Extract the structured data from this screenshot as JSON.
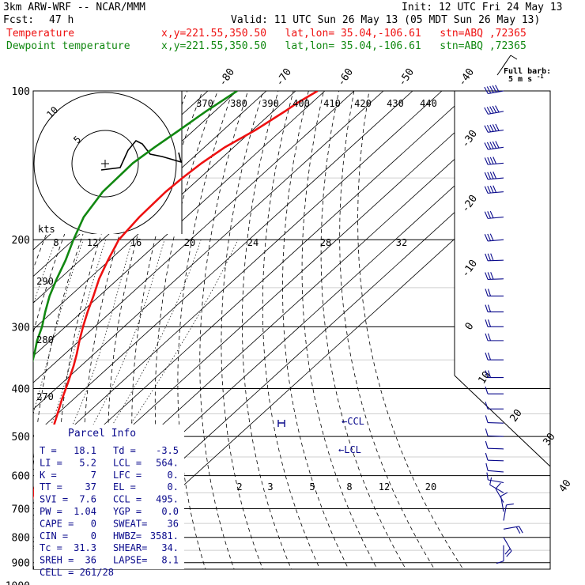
{
  "header": {
    "model": "3km ARW-WRF -- NCAR/MMM",
    "init": "Init: 12 UTC Fri 24 May 13",
    "fcst_label": "Fcst:",
    "fcst_value": "47 h",
    "valid": "Valid: 11 UTC Sun 26 May 13 (05 MDT Sun 26 May 13)",
    "line1_label": "Temperature",
    "line1_info": "x,y=221.55,350.50   lat,lon= 35.04,-106.61   stn=ABQ ,72365",
    "line2_label": "Dewpoint temperature",
    "line2_info": "x,y=221.55,350.50   lat,lon= 35.04,-106.61   stn=ABQ ,72365"
  },
  "barb_key": {
    "title": "Full barb:",
    "value": "5 m s",
    "exp": "-1"
  },
  "hodograph": {
    "unit": "kts",
    "ring_labels": [
      "5",
      "10"
    ]
  },
  "labels": {
    "lcl": "LCL",
    "ccl": "CCL",
    "parcel_title": "Parcel Info"
  },
  "parcel": {
    "rows": [
      [
        "T  =",
        "18.1",
        "Td =",
        "-3.5"
      ],
      [
        "LI =",
        "5.2",
        "LCL =",
        "564."
      ],
      [
        "K  =",
        "7",
        "LFC =",
        "0."
      ],
      [
        "TT =",
        "37",
        "EL  =",
        "0."
      ],
      [
        "SVI =",
        "7.6",
        "CCL =",
        "495."
      ],
      [
        "PW =",
        "1.04",
        "YGP =",
        "0.0"
      ],
      [
        "CAPE =",
        "0",
        "SWEAT=",
        "36"
      ],
      [
        "CIN =",
        "0",
        "HWBZ=",
        "3581."
      ],
      [
        "Tc =",
        "31.3",
        "SHEAR=",
        "34."
      ],
      [
        "SREH =",
        "36",
        "LAPSE=",
        "8.1"
      ]
    ],
    "last": "CELL = 261/28"
  },
  "colors": {
    "temperature": "#ee1111",
    "dewpoint": "#118811",
    "info": "#0a0a8c"
  },
  "chart_data": {
    "type": "line",
    "chart_kind": "skew-T log-p sounding",
    "y_axis": {
      "quantity": "pressure (hPa)",
      "scale": "log",
      "range": [
        1000,
        100
      ],
      "ticks": [
        100,
        200,
        300,
        400,
        500,
        600,
        700,
        800,
        900,
        1000
      ]
    },
    "isotherm_labels": [
      -80,
      -70,
      -60,
      -50,
      -40,
      -30,
      -20,
      -10,
      0,
      10,
      20,
      30,
      40
    ],
    "theta_labels": [
      370,
      380,
      390,
      400,
      410,
      420,
      430,
      440,
      290,
      280,
      270
    ],
    "mixing_ratio_labels": [
      8,
      12,
      16,
      20,
      24,
      28,
      32,
      2,
      3,
      5,
      8,
      12,
      20
    ],
    "hodograph_speed_labels": [
      8,
      12,
      16,
      20,
      24,
      28,
      32
    ],
    "series": [
      {
        "name": "Temperature",
        "pressure": [
          830,
          820,
          810,
          790,
          770,
          750,
          720,
          690,
          650,
          620,
          590,
          560,
          530,
          500,
          470,
          450,
          420,
          390,
          360,
          340,
          320,
          300,
          280,
          260,
          240,
          220,
          200,
          180,
          160,
          150,
          140,
          130,
          120,
          110,
          106,
          100
        ],
        "temp_c": [
          17.7,
          18.5,
          18.5,
          16.5,
          14.0,
          11.5,
          8.5,
          5.5,
          1.5,
          -1.5,
          -4.5,
          -7.5,
          -10.5,
          -13.5,
          -17.5,
          -20.0,
          -24.0,
          -28.0,
          -32.5,
          -36.0,
          -40.0,
          -44.0,
          -48.0,
          -52.0,
          -56.5,
          -60.5,
          -64.5,
          -66.0,
          -66.5,
          -66.0,
          -65.0,
          -63.0,
          -59.0,
          -56.0,
          -55.0,
          -52.5
        ]
      },
      {
        "name": "Dewpoint temperature",
        "pressure": [
          830,
          820,
          800,
          780,
          760,
          740,
          720,
          700,
          680,
          660,
          640,
          620,
          600,
          580,
          560,
          540,
          520,
          500,
          480,
          460,
          440,
          420,
          400,
          380,
          360,
          340,
          320,
          300,
          280,
          260,
          240,
          220,
          200,
          180,
          160,
          140,
          130,
          120,
          110,
          100
        ],
        "temp_c": [
          -2.5,
          -4.0,
          -5.0,
          -5.0,
          -4.5,
          -4.0,
          -3.5,
          -4.5,
          -5.5,
          -5.5,
          -6.0,
          -7.0,
          -8.5,
          -11.0,
          -14.5,
          -17.5,
          -21.0,
          -26.0,
          -30.5,
          -32.5,
          -35.5,
          -38.5,
          -41.0,
          -44.0,
          -47.0,
          -50.5,
          -54.5,
          -58.0,
          -62.5,
          -67.0,
          -71.0,
          -75.0,
          -80.0,
          -85.0,
          -88.0,
          -88.5,
          -87.0,
          -85.0,
          -83.0,
          -80.0
        ]
      }
    ],
    "wind_barbs": {
      "pressure": [
        100,
        110,
        120,
        130,
        140,
        150,
        160,
        180,
        200,
        220,
        240,
        260,
        280,
        300,
        320,
        350,
        380,
        410,
        440,
        470,
        500,
        530,
        560,
        590,
        620,
        650,
        680,
        710,
        740,
        770,
        800,
        830
      ],
      "direction_deg": [
        260,
        260,
        262,
        262,
        265,
        265,
        265,
        265,
        265,
        268,
        268,
        270,
        270,
        270,
        270,
        270,
        270,
        270,
        270,
        272,
        272,
        272,
        272,
        275,
        280,
        300,
        330,
        350,
        10,
        80,
        150,
        180
      ],
      "speed_ms": [
        25,
        25,
        25,
        25,
        22,
        22,
        20,
        18,
        16,
        15,
        15,
        14,
        12,
        12,
        10,
        10,
        10,
        8,
        8,
        8,
        8,
        5,
        5,
        5,
        5,
        5,
        5,
        8,
        8,
        10,
        12,
        5
      ]
    }
  }
}
